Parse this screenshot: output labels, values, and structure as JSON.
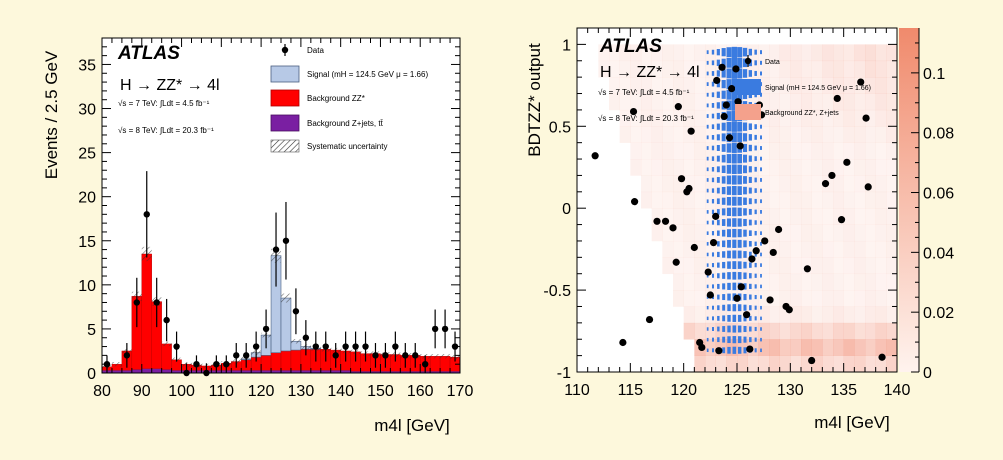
{
  "chart_data": [
    {
      "type": "bar",
      "experiment": "ATLAS",
      "process": "H → ZZ* → 4l",
      "lumi_7": "√s = 7 TeV: ∫Ldt = 4.5 fb⁻¹",
      "lumi_8": "√s = 8 TeV: ∫Ldt = 20.3 fb⁻¹",
      "xlabel": "m4l [GeV]",
      "ylabel": "Events / 2.5 GeV",
      "xlim": [
        80,
        170
      ],
      "ylim": [
        0,
        38
      ],
      "xticks": [
        "80",
        "90",
        "100",
        "110",
        "120",
        "130",
        "140",
        "150",
        "160",
        "170"
      ],
      "yticks": [
        "0",
        "5",
        "10",
        "15",
        "20",
        "25",
        "30",
        "35"
      ],
      "legend_position": "top-right",
      "legend": {
        "data": "Data",
        "signal": "Signal (mH = 124.5 GeV μ = 1.66)",
        "zz": "Background ZZ*",
        "zjets": "Background Z+jets, tt̄",
        "syst": "Systematic uncertainty"
      },
      "colors": {
        "signal": "#b7c9e6",
        "zz": "#ff0000",
        "zjets": "#7a1fa2",
        "data": "#000000"
      },
      "bin_edges": [
        80,
        82.5,
        85,
        87.5,
        90,
        92.5,
        95,
        97.5,
        100,
        102.5,
        105,
        107.5,
        110,
        112.5,
        115,
        117.5,
        120,
        122.5,
        125,
        127.5,
        130,
        132.5,
        135,
        137.5,
        140,
        142.5,
        145,
        147.5,
        150,
        152.5,
        155,
        157.5,
        160,
        162.5,
        165,
        167.5,
        170
      ],
      "series": [
        {
          "name": "Background Z+jets, tt̄",
          "values": [
            0.3,
            0.3,
            0.3,
            0.4,
            0.5,
            0.5,
            0.4,
            0.3,
            0.3,
            0.3,
            0.3,
            0.3,
            0.3,
            0.3,
            0.3,
            0.3,
            0.3,
            0.3,
            0.3,
            0.3,
            0.3,
            0.3,
            0.3,
            0.3,
            0.3,
            0.2,
            0.2,
            0.2,
            0.2,
            0.2,
            0.2,
            0.2,
            0.2,
            0.2,
            0.2,
            0.2
          ]
        },
        {
          "name": "Background ZZ*",
          "values": [
            0.4,
            0.7,
            2.2,
            8.3,
            13.0,
            7.6,
            2.9,
            1.2,
            0.7,
            0.6,
            0.5,
            0.6,
            0.8,
            1.0,
            1.2,
            1.5,
            1.7,
            2.0,
            2.2,
            2.3,
            2.4,
            2.4,
            2.4,
            2.3,
            2.2,
            2.2,
            2.0,
            2.0,
            1.9,
            1.9,
            1.8,
            1.8,
            1.7,
            1.7,
            1.7,
            1.6
          ]
        },
        {
          "name": "Signal (mH = 124.5 GeV μ = 1.66)",
          "values": [
            0,
            0,
            0,
            0,
            0,
            0,
            0,
            0,
            0,
            0,
            0,
            0,
            0,
            0,
            0.1,
            0.5,
            2.3,
            11.0,
            6.0,
            1.0,
            0.3,
            0.1,
            0,
            0,
            0,
            0,
            0,
            0,
            0,
            0,
            0,
            0,
            0,
            0,
            0,
            0
          ]
        }
      ],
      "data_points": [
        {
          "x": 81.25,
          "y": 1,
          "err": 1.0
        },
        {
          "x": 86.25,
          "y": 2,
          "err": 1.4
        },
        {
          "x": 88.75,
          "y": 8,
          "err": 2.8
        },
        {
          "x": 91.25,
          "y": 18,
          "err": 4.9
        },
        {
          "x": 93.75,
          "y": 8,
          "err": 2.8
        },
        {
          "x": 96.25,
          "y": 6,
          "err": 2.4
        },
        {
          "x": 98.75,
          "y": 3,
          "err": 1.7
        },
        {
          "x": 101.25,
          "y": 0,
          "err": 1.1
        },
        {
          "x": 103.75,
          "y": 1,
          "err": 1.0
        },
        {
          "x": 106.25,
          "y": 0,
          "err": 1.1
        },
        {
          "x": 108.75,
          "y": 1,
          "err": 1.0
        },
        {
          "x": 111.25,
          "y": 1,
          "err": 1.0
        },
        {
          "x": 113.75,
          "y": 2,
          "err": 1.4
        },
        {
          "x": 116.25,
          "y": 2,
          "err": 1.4
        },
        {
          "x": 118.75,
          "y": 3,
          "err": 1.7
        },
        {
          "x": 121.25,
          "y": 5,
          "err": 2.2
        },
        {
          "x": 123.75,
          "y": 14,
          "err": 4.2
        },
        {
          "x": 126.25,
          "y": 15,
          "err": 4.4
        },
        {
          "x": 128.75,
          "y": 7,
          "err": 2.6
        },
        {
          "x": 131.25,
          "y": 4,
          "err": 2.0
        },
        {
          "x": 133.75,
          "y": 3,
          "err": 1.7
        },
        {
          "x": 136.25,
          "y": 3,
          "err": 1.7
        },
        {
          "x": 138.75,
          "y": 2,
          "err": 1.4
        },
        {
          "x": 141.25,
          "y": 3,
          "err": 1.7
        },
        {
          "x": 143.75,
          "y": 3,
          "err": 1.7
        },
        {
          "x": 146.25,
          "y": 3,
          "err": 1.7
        },
        {
          "x": 148.75,
          "y": 2,
          "err": 1.4
        },
        {
          "x": 151.25,
          "y": 2,
          "err": 1.4
        },
        {
          "x": 153.75,
          "y": 3,
          "err": 1.7
        },
        {
          "x": 156.25,
          "y": 2,
          "err": 1.4
        },
        {
          "x": 158.75,
          "y": 2,
          "err": 1.4
        },
        {
          "x": 161.25,
          "y": 1,
          "err": 1.0
        },
        {
          "x": 163.75,
          "y": 5,
          "err": 2.2
        },
        {
          "x": 166.25,
          "y": 5,
          "err": 2.2
        },
        {
          "x": 168.75,
          "y": 3,
          "err": 1.7
        }
      ]
    },
    {
      "type": "heatmap",
      "experiment": "ATLAS",
      "process": "H → ZZ* → 4l",
      "lumi_7": "√s = 7 TeV: ∫Ldt = 4.5 fb⁻¹",
      "lumi_8": "√s = 8 TeV: ∫Ldt = 20.3 fb⁻¹",
      "xlabel": "m4l [GeV]",
      "ylabel": "BDTZZ* output",
      "xlim": [
        110,
        140
      ],
      "ylim": [
        -1,
        1.1
      ],
      "xticks": [
        "110",
        "115",
        "120",
        "125",
        "130",
        "135",
        "140"
      ],
      "yticks": [
        "-1",
        "-0.5",
        "0",
        "0.5",
        "1"
      ],
      "zlim": [
        0,
        0.115
      ],
      "zticks": [
        "0",
        "0.02",
        "0.04",
        "0.06",
        "0.08",
        "0.1"
      ],
      "legend_position": "top-right",
      "legend": {
        "data": "Data",
        "signal": "Signal (mH = 124.5 GeV μ = 1.66)",
        "background": "Background ZZ*, Z+jets"
      },
      "colors": {
        "signal": "#3a7be0",
        "background": "#f4a18c",
        "data": "#000000"
      },
      "signal_box": {
        "x": [
          119,
          131
        ],
        "y": [
          -0.9,
          0.95
        ]
      },
      "data_points": [
        {
          "x": 111.7,
          "y": 0.32
        },
        {
          "x": 114.3,
          "y": -0.82
        },
        {
          "x": 115.3,
          "y": 0.59
        },
        {
          "x": 115.4,
          "y": 0.04
        },
        {
          "x": 116.8,
          "y": -0.68
        },
        {
          "x": 117.5,
          "y": -0.08
        },
        {
          "x": 118.3,
          "y": -0.08
        },
        {
          "x": 119.0,
          "y": -0.12
        },
        {
          "x": 119.3,
          "y": -0.33
        },
        {
          "x": 119.5,
          "y": 0.62
        },
        {
          "x": 119.8,
          "y": 0.18
        },
        {
          "x": 120.3,
          "y": 0.1
        },
        {
          "x": 120.5,
          "y": 0.12
        },
        {
          "x": 120.7,
          "y": 0.47
        },
        {
          "x": 121.0,
          "y": -0.24
        },
        {
          "x": 121.5,
          "y": -0.82
        },
        {
          "x": 121.7,
          "y": -0.85
        },
        {
          "x": 122.3,
          "y": -0.39
        },
        {
          "x": 122.5,
          "y": -0.53
        },
        {
          "x": 122.8,
          "y": -0.21
        },
        {
          "x": 123.0,
          "y": -0.05
        },
        {
          "x": 123.1,
          "y": 0.78
        },
        {
          "x": 123.3,
          "y": -0.87
        },
        {
          "x": 123.6,
          "y": 0.86
        },
        {
          "x": 123.8,
          "y": 0.56
        },
        {
          "x": 124.0,
          "y": 0.63
        },
        {
          "x": 124.3,
          "y": 0.43
        },
        {
          "x": 124.5,
          "y": 0.73
        },
        {
          "x": 124.9,
          "y": 0.85
        },
        {
          "x": 125.1,
          "y": 0.65
        },
        {
          "x": 125.3,
          "y": 0.38
        },
        {
          "x": 125.6,
          "y": 0.6
        },
        {
          "x": 125.0,
          "y": -0.55
        },
        {
          "x": 125.4,
          "y": -0.48
        },
        {
          "x": 125.9,
          "y": -0.65
        },
        {
          "x": 126.2,
          "y": -0.86
        },
        {
          "x": 126.4,
          "y": -0.31
        },
        {
          "x": 126.8,
          "y": -0.26
        },
        {
          "x": 127.1,
          "y": 0.63
        },
        {
          "x": 127.3,
          "y": 0.57
        },
        {
          "x": 127.6,
          "y": -0.2
        },
        {
          "x": 128.1,
          "y": -0.56
        },
        {
          "x": 128.4,
          "y": -0.27
        },
        {
          "x": 128.9,
          "y": -0.13
        },
        {
          "x": 129.6,
          "y": -0.6
        },
        {
          "x": 129.9,
          "y": -0.62
        },
        {
          "x": 131.6,
          "y": -0.37
        },
        {
          "x": 132.0,
          "y": -0.93
        },
        {
          "x": 133.3,
          "y": 0.15
        },
        {
          "x": 133.9,
          "y": 0.2
        },
        {
          "x": 134.4,
          "y": 0.67
        },
        {
          "x": 134.8,
          "y": -0.07
        },
        {
          "x": 135.3,
          "y": 0.28
        },
        {
          "x": 136.6,
          "y": 0.77
        },
        {
          "x": 137.1,
          "y": 0.55
        },
        {
          "x": 137.3,
          "y": 0.13
        },
        {
          "x": 138.6,
          "y": -0.91
        }
      ]
    }
  ]
}
